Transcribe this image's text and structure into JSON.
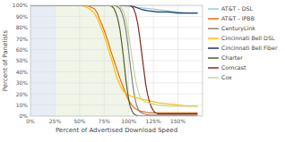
{
  "chart_data": {
    "type": "line",
    "xlabel": "Percent of Advertised Download Speed",
    "ylabel": "Percent of Panelists",
    "xlim": [
      0,
      175
    ],
    "ylim": [
      0,
      100
    ],
    "xticks": [
      {
        "value": 0,
        "label": "0%"
      },
      {
        "value": 25,
        "label": "25%"
      },
      {
        "value": 50,
        "label": "50%"
      },
      {
        "value": 75,
        "label": "75%"
      },
      {
        "value": 100,
        "label": "100%"
      },
      {
        "value": 125,
        "label": "125%"
      },
      {
        "value": 150,
        "label": "150%"
      }
    ],
    "yticks": [
      {
        "value": 0,
        "label": "0%"
      },
      {
        "value": 10,
        "label": "10%"
      },
      {
        "value": 20,
        "label": "20%"
      },
      {
        "value": 30,
        "label": "30%"
      },
      {
        "value": 40,
        "label": "40%"
      },
      {
        "value": 50,
        "label": "50%"
      },
      {
        "value": 60,
        "label": "60%"
      },
      {
        "value": 70,
        "label": "70%"
      },
      {
        "value": 80,
        "label": "80%"
      },
      {
        "value": 90,
        "label": "90%"
      },
      {
        "value": 100,
        "label": "100%"
      }
    ],
    "grid": true,
    "legend": "right",
    "shading": [
      {
        "xmin": 0,
        "xmax": 25,
        "color": "#dce6f1"
      },
      {
        "xmin": 25,
        "xmax": 100,
        "color": "#ebf1de"
      }
    ],
    "series": [
      {
        "name": "AT&T - DSL",
        "color": "#92cddc",
        "x": [
          0,
          90,
          100,
          110,
          120,
          130,
          140,
          150,
          160,
          170
        ],
        "values": [
          100,
          100,
          99,
          98,
          97,
          96,
          95,
          94,
          93,
          93
        ]
      },
      {
        "name": "AT&T - IPBB",
        "color": "#e36c09",
        "x": [
          0,
          55,
          60,
          65,
          68,
          70,
          73,
          76,
          79,
          82,
          85,
          88,
          91,
          94,
          97,
          100,
          103,
          106,
          110,
          115,
          120,
          130,
          140,
          150,
          160,
          170
        ],
        "values": [
          100,
          100,
          99,
          97,
          93,
          88,
          82,
          75,
          67,
          58,
          50,
          42,
          34,
          27,
          20,
          14,
          10,
          7,
          5,
          4,
          3,
          3,
          3,
          3,
          3,
          3
        ]
      },
      {
        "name": "CenturyLink",
        "color": "#808080",
        "x": [
          0,
          85,
          88,
          91,
          93,
          95,
          97,
          99,
          101,
          103,
          105,
          107,
          109,
          111,
          115,
          120,
          130,
          140,
          150,
          160,
          170
        ],
        "values": [
          100,
          100,
          99,
          97,
          93,
          87,
          78,
          65,
          50,
          35,
          22,
          13,
          7,
          4,
          2,
          1,
          1,
          1,
          1,
          1,
          1
        ]
      },
      {
        "name": "Cincinnati Bell DSL",
        "color": "#ffc000",
        "x": [
          0,
          50,
          55,
          60,
          65,
          68,
          71,
          74,
          77,
          80,
          83,
          86,
          89,
          92,
          95,
          100,
          105,
          110,
          115,
          120,
          130,
          140,
          150,
          160,
          170
        ],
        "values": [
          100,
          100,
          99,
          97,
          93,
          88,
          82,
          75,
          67,
          58,
          50,
          40,
          32,
          26,
          22,
          19,
          17,
          16,
          15,
          14,
          12,
          11,
          10,
          9,
          9
        ]
      },
      {
        "name": "Cincinnati Bell Fiber",
        "color": "#17375e",
        "x": [
          0,
          95,
          100,
          105,
          108,
          111,
          114,
          120,
          130,
          140,
          150,
          160,
          170
        ],
        "values": [
          100,
          100,
          100,
          99,
          98,
          97,
          96,
          95,
          94,
          94,
          93,
          93,
          93
        ]
      },
      {
        "name": "Charter",
        "color": "#4f6228",
        "x": [
          0,
          80,
          83,
          85,
          87,
          89,
          91,
          93,
          95,
          97,
          99,
          101,
          103,
          105,
          107,
          110,
          170
        ],
        "values": [
          100,
          100,
          99,
          97,
          93,
          87,
          78,
          65,
          50,
          33,
          20,
          10,
          5,
          2,
          1,
          0,
          0
        ]
      },
      {
        "name": "Comcast",
        "color": "#7f2a25",
        "x": [
          0,
          100,
          103,
          105,
          107,
          109,
          111,
          113,
          115,
          117,
          119,
          121,
          123,
          125,
          127,
          130,
          135,
          140,
          150,
          160,
          170
        ],
        "values": [
          100,
          100,
          99,
          97,
          92,
          84,
          72,
          58,
          44,
          30,
          20,
          13,
          8,
          5,
          3,
          2,
          2,
          2,
          2,
          2,
          2
        ]
      },
      {
        "name": "Cox",
        "color": "#c3d69b",
        "x": [
          0,
          88,
          91,
          93,
          95,
          97,
          99,
          101,
          103,
          105,
          107,
          109,
          111,
          113,
          116,
          120,
          125,
          130,
          140,
          150,
          160,
          170
        ],
        "values": [
          100,
          100,
          99,
          97,
          93,
          87,
          78,
          67,
          55,
          43,
          32,
          24,
          18,
          15,
          13,
          12,
          11,
          10,
          9,
          9,
          9,
          9
        ]
      }
    ]
  }
}
